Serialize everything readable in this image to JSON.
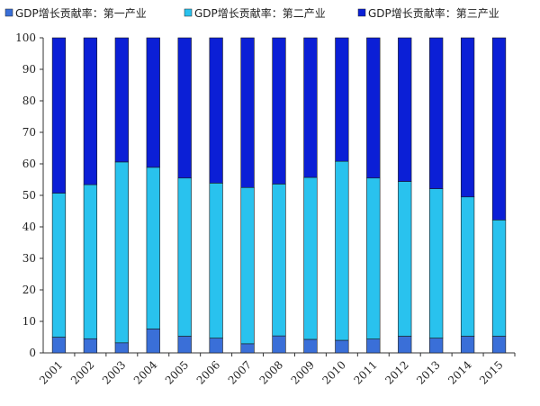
{
  "chart_data": {
    "type": "bar",
    "stacked": true,
    "categories": [
      "2001",
      "2002",
      "2003",
      "2004",
      "2005",
      "2006",
      "2007",
      "2008",
      "2009",
      "2010",
      "2011",
      "2012",
      "2013",
      "2014",
      "2015"
    ],
    "series": [
      {
        "name": "GDP增长贡献率：第一产业",
        "color": "#3a6fd8",
        "values": [
          5,
          4.5,
          3.2,
          7.6,
          5.3,
          4.7,
          2.9,
          5.4,
          4.3,
          4.0,
          4.4,
          5.3,
          4.7,
          5.3,
          5.3
        ]
      },
      {
        "name": "GDP增长贡献率：第二产业",
        "color": "#29c2ee",
        "values": [
          45.7,
          48.9,
          57.4,
          51.3,
          50.2,
          49.2,
          49.6,
          48.2,
          51.4,
          56.8,
          51.1,
          49.1,
          47.4,
          44.2,
          36.9
        ]
      },
      {
        "name": "GDP增长贡献率：第三产业",
        "color": "#0b1fd6",
        "values": [
          49.3,
          46.6,
          39.4,
          41.1,
          44.5,
          46.1,
          47.5,
          46.4,
          44.3,
          39.2,
          44.5,
          45.6,
          47.9,
          50.5,
          57.8
        ]
      }
    ],
    "ylim": [
      0,
      100
    ],
    "yticks": [
      0,
      10,
      20,
      30,
      40,
      50,
      60,
      70,
      80,
      90,
      100
    ],
    "legend_position": "top",
    "grid": false,
    "title": "",
    "xlabel": "",
    "ylabel": ""
  }
}
